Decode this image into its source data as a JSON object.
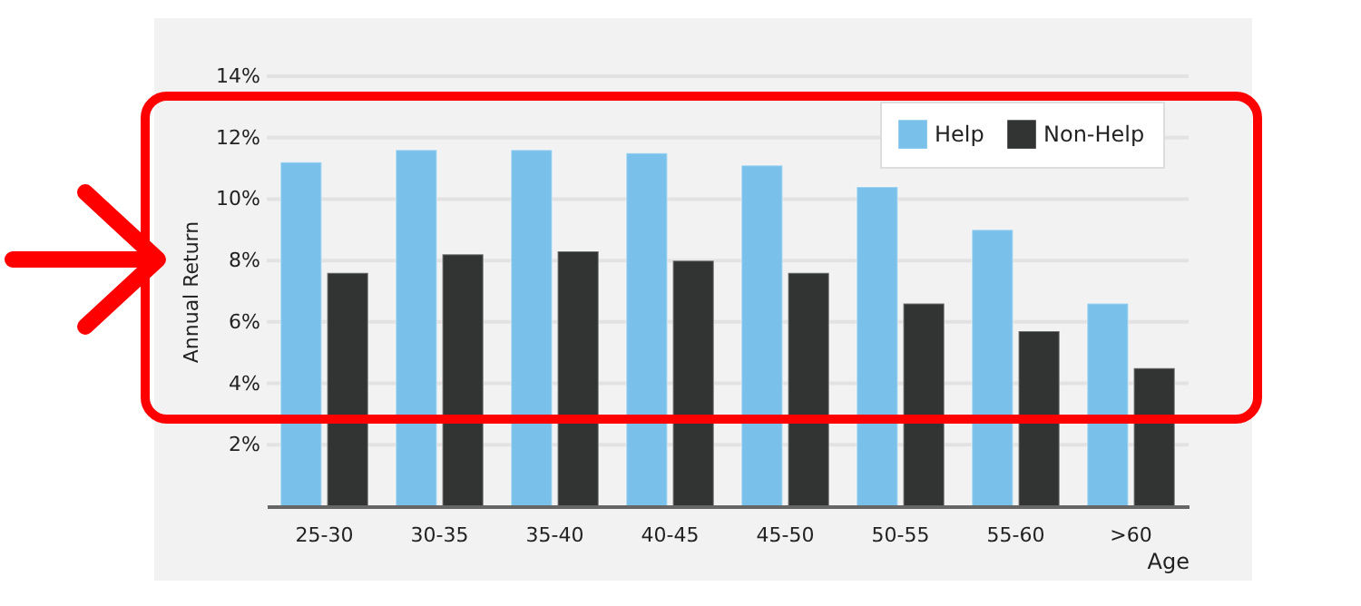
{
  "chart_data": {
    "type": "bar",
    "xlabel": "Age",
    "ylabel": "Annual Return",
    "categories": [
      "25-30",
      "30-35",
      "35-40",
      "40-45",
      "45-50",
      "50-55",
      "55-60",
      ">60"
    ],
    "series": [
      {
        "name": "Help",
        "color": "#79c1eb",
        "values": [
          11.2,
          11.6,
          11.6,
          11.5,
          11.1,
          10.4,
          9.0,
          6.6
        ]
      },
      {
        "name": "Non-Help",
        "color": "#323333",
        "values": [
          7.6,
          8.2,
          8.3,
          8.0,
          7.6,
          6.6,
          5.7,
          4.5
        ]
      }
    ],
    "ylim": [
      0,
      14
    ],
    "yticks": [
      {
        "value": 2,
        "label": "2%"
      },
      {
        "value": 4,
        "label": "4%"
      },
      {
        "value": 6,
        "label": "6%"
      },
      {
        "value": 8,
        "label": "8%"
      },
      {
        "value": 10,
        "label": "10%"
      },
      {
        "value": 12,
        "label": "12%"
      },
      {
        "value": 14,
        "label": "14%"
      }
    ],
    "grid": "y",
    "legend": "top right"
  }
}
